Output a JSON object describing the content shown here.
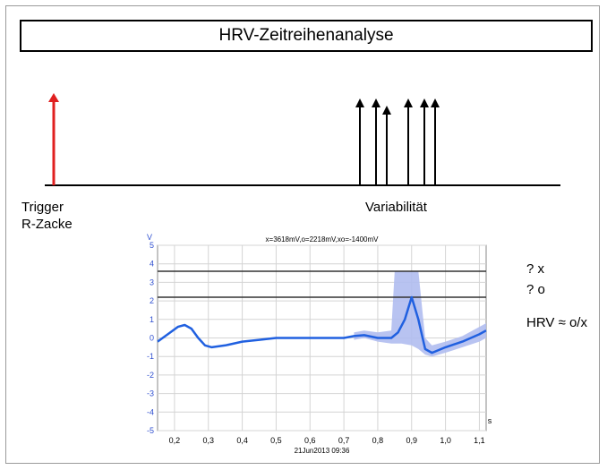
{
  "title": "HRV-Zeitreihenanalyse",
  "trigger": {
    "line1": "Trigger",
    "line2": "R-Zacke"
  },
  "variability_label": "Variabilität",
  "side_labels": {
    "x": "? x",
    "o": "? o",
    "hrv": "HRV  ≈ o/x"
  },
  "chart_data": {
    "type": "line",
    "title": "x=3618mV,o=2218mV,xo=-1400mV",
    "date_label": "21Jun2013  09:36",
    "ylabel": "V",
    "xlabel": "s",
    "xlim": [
      0.15,
      1.12
    ],
    "ylim": [
      -5,
      5
    ],
    "x_ticks": [
      0.2,
      0.3,
      0.4,
      0.5,
      0.6,
      0.7,
      0.8,
      0.9,
      1.0,
      1.1
    ],
    "x_tick_labels": [
      "0,2",
      "0,3",
      "0,4",
      "0,5",
      "0,6",
      "0,7",
      "0,8",
      "0,9",
      "1,0",
      "1,1"
    ],
    "y_ticks": [
      5,
      4,
      3,
      2,
      1,
      0,
      -1,
      -2,
      -3,
      -4,
      -5
    ],
    "y_tick_labels": [
      "5",
      "4",
      "3",
      "2",
      "1",
      "0",
      "-1",
      "-2",
      "-3",
      "-4",
      "-5"
    ],
    "grid": true,
    "reference_lines": [
      {
        "name": "x",
        "value": 3.6
      },
      {
        "name": "o",
        "value": 2.2
      }
    ],
    "series": [
      {
        "x": [
          0.15,
          0.18,
          0.21,
          0.23,
          0.25,
          0.27,
          0.29,
          0.31,
          0.35,
          0.4,
          0.45,
          0.5,
          0.55,
          0.6,
          0.65,
          0.7,
          0.73,
          0.76,
          0.8,
          0.84,
          0.86,
          0.88,
          0.9,
          0.92,
          0.94,
          0.96,
          1.0,
          1.05,
          1.1,
          1.12
        ],
        "y": [
          -0.2,
          0.2,
          0.6,
          0.7,
          0.5,
          0.0,
          -0.4,
          -0.5,
          -0.4,
          -0.2,
          -0.1,
          0.0,
          0.0,
          0.0,
          0.0,
          0.0,
          0.1,
          0.15,
          0.0,
          0.0,
          0.3,
          1.0,
          2.2,
          1.0,
          -0.6,
          -0.8,
          -0.5,
          -0.2,
          0.2,
          0.4
        ]
      }
    ],
    "band": {
      "x": [
        0.73,
        0.76,
        0.8,
        0.84,
        0.85,
        0.87,
        0.9,
        0.92,
        0.94,
        0.96,
        1.0,
        1.05,
        1.1,
        1.12
      ],
      "upper": [
        0.3,
        0.4,
        0.3,
        0.4,
        3.6,
        3.6,
        3.6,
        3.6,
        0.0,
        -0.4,
        -0.2,
        0.1,
        0.6,
        0.8
      ],
      "lower": [
        -0.1,
        0.0,
        -0.2,
        -0.3,
        -0.3,
        -0.3,
        -0.4,
        -0.6,
        -0.9,
        -1.0,
        -0.8,
        -0.5,
        -0.2,
        0.0
      ]
    }
  },
  "colors": {
    "trigger": "#e02020",
    "curve": "#2060e0",
    "band": "#b0bcf0",
    "axis_text": "#3050d0"
  }
}
